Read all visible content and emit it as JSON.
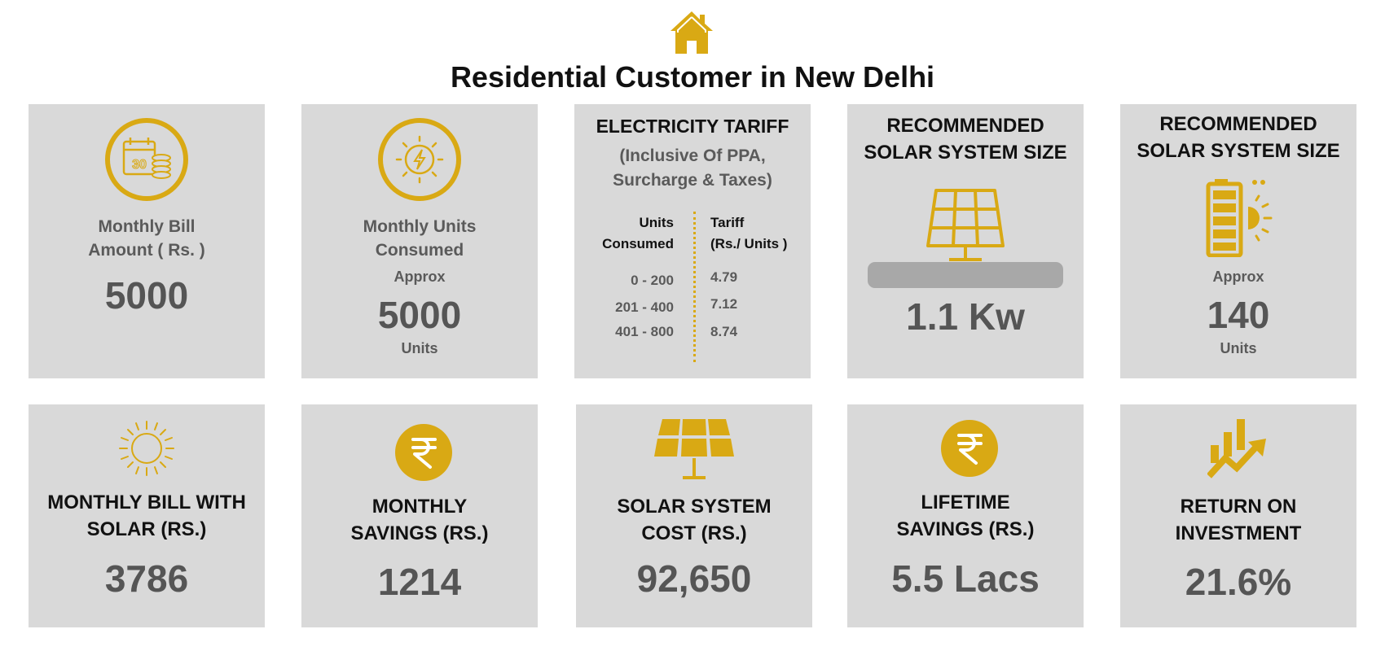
{
  "title": "Residential Customer in New Delhi",
  "colors": {
    "accent": "#d9a914",
    "card_bg": "#d9d9d9",
    "text_grey": "#555555"
  },
  "icons": {
    "header": "house-icon",
    "bill": "calendar-coins-icon",
    "units": "sun-bolt-icon",
    "panel_row1": "solar-panel-icon",
    "battery": "battery-sun-icon",
    "sun": "sun-icon",
    "rupee": "rupee-icon",
    "panel_row2": "solar-panel-icon",
    "growth": "growth-chart-icon"
  },
  "row1": {
    "monthly_bill": {
      "label_line1": "Monthly Bill",
      "label_line2": "Amount ( Rs. )",
      "value": "5000"
    },
    "monthly_units": {
      "label_line1": "Monthly Units",
      "label_line2": "Consumed",
      "approx": "Approx",
      "value": "5000",
      "unit": "Units"
    },
    "tariff": {
      "heading": "ELECTRICITY TARIFF",
      "subheading_line1": "(Inclusive Of PPA,",
      "subheading_line2": "Surcharge & Taxes)",
      "col1_line1": "Units",
      "col1_line2": "Consumed",
      "col2_line1": "Tariff",
      "col2_line2": "(Rs./ Units )",
      "rows": [
        {
          "range": "0 - 200",
          "rate": "4.79"
        },
        {
          "range": "201 - 400",
          "rate": "7.12"
        },
        {
          "range": "401 - 800",
          "rate": "8.74"
        }
      ]
    },
    "system_size": {
      "heading_line1": "RECOMMENDED",
      "heading_line2": "SOLAR SYSTEM SIZE",
      "value": "1.1 Kw"
    },
    "system_size_units": {
      "heading_line1": "RECOMMENDED",
      "heading_line2": "SOLAR SYSTEM SIZE",
      "approx": "Approx",
      "value": "140",
      "unit": "Units"
    }
  },
  "row2": {
    "bill_with_solar": {
      "heading_line1": "MONTHLY BILL WITH",
      "heading_line2": "SOLAR (RS.)",
      "value": "3786"
    },
    "monthly_savings": {
      "heading_line1": "MONTHLY",
      "heading_line2": "SAVINGS (RS.)",
      "value": "1214"
    },
    "system_cost": {
      "heading_line1": "SOLAR SYSTEM",
      "heading_line2": "COST (RS.)",
      "value": "92,650"
    },
    "lifetime_savings": {
      "heading_line1": "LIFETIME",
      "heading_line2": "SAVINGS (RS.)",
      "value": "5.5 Lacs"
    },
    "roi": {
      "heading_line1": "RETURN ON",
      "heading_line2": "INVESTMENT",
      "value": "21.6%"
    }
  }
}
